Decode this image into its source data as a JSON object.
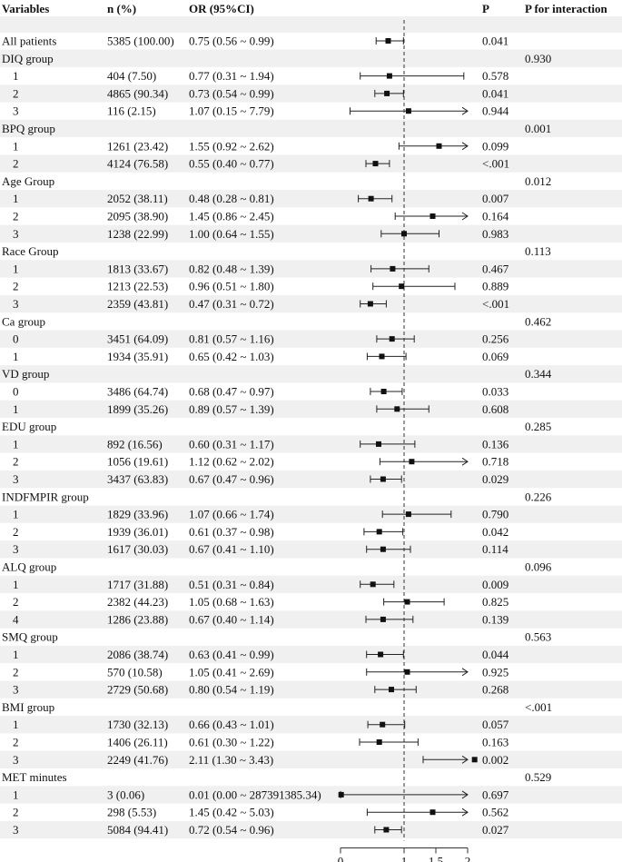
{
  "chart_data": {
    "type": "forest",
    "headers": {
      "variables": "Variables",
      "n": "n (%)",
      "or": "OR (95%CI)",
      "p": "P",
      "p_interaction": "P for interaction"
    },
    "x_axis": {
      "ticks": [
        0,
        1,
        1.5,
        2
      ],
      "tick_labels": [
        "0",
        "1",
        "1.5",
        "2"
      ],
      "range": [
        0,
        2
      ],
      "reference_line": 1
    },
    "rows": [
      {
        "label": "All patients",
        "n": "5385 (100.00)",
        "or_text": "0.75 (0.56 ~ 0.99)",
        "or": 0.75,
        "lo": 0.56,
        "hi": 0.99,
        "p": "0.041",
        "pint": ""
      },
      {
        "label": "DIQ group",
        "header": true,
        "pint": "0.930"
      },
      {
        "label": "1",
        "n": "404 (7.50)",
        "or_text": "0.77 (0.31 ~ 1.94)",
        "or": 0.77,
        "lo": 0.31,
        "hi": 1.94,
        "p": "0.578",
        "pint": ""
      },
      {
        "label": "2",
        "n": "4865 (90.34)",
        "or_text": "0.73 (0.54 ~ 0.99)",
        "or": 0.73,
        "lo": 0.54,
        "hi": 0.99,
        "p": "0.041",
        "pint": ""
      },
      {
        "label": "3",
        "n": "116 (2.15)",
        "or_text": "1.07 (0.15 ~ 7.79)",
        "or": 1.07,
        "lo": 0.15,
        "hi": 7.79,
        "p": "0.944",
        "pint": ""
      },
      {
        "label": "BPQ group",
        "header": true,
        "pint": "0.001"
      },
      {
        "label": "1",
        "n": "1261 (23.42)",
        "or_text": "1.55 (0.92 ~ 2.62)",
        "or": 1.55,
        "lo": 0.92,
        "hi": 2.62,
        "p": "0.099",
        "pint": ""
      },
      {
        "label": "2",
        "n": "4124 (76.58)",
        "or_text": "0.55 (0.40 ~ 0.77)",
        "or": 0.55,
        "lo": 0.4,
        "hi": 0.77,
        "p": "<.001",
        "pint": ""
      },
      {
        "label": "Age Group",
        "header": true,
        "pint": "0.012"
      },
      {
        "label": "1",
        "n": "2052 (38.11)",
        "or_text": "0.48 (0.28 ~ 0.81)",
        "or": 0.48,
        "lo": 0.28,
        "hi": 0.81,
        "p": "0.007",
        "pint": ""
      },
      {
        "label": "2",
        "n": "2095 (38.90)",
        "or_text": "1.45 (0.86 ~ 2.45)",
        "or": 1.45,
        "lo": 0.86,
        "hi": 2.45,
        "p": "0.164",
        "pint": ""
      },
      {
        "label": "3",
        "n": "1238 (22.99)",
        "or_text": "1.00 (0.64 ~ 1.55)",
        "or": 1.0,
        "lo": 0.64,
        "hi": 1.55,
        "p": "0.983",
        "pint": ""
      },
      {
        "label": "Race Group",
        "header": true,
        "pint": "0.113"
      },
      {
        "label": "1",
        "n": "1813 (33.67)",
        "or_text": "0.82 (0.48 ~ 1.39)",
        "or": 0.82,
        "lo": 0.48,
        "hi": 1.39,
        "p": "0.467",
        "pint": ""
      },
      {
        "label": "2",
        "n": "1213 (22.53)",
        "or_text": "0.96 (0.51 ~ 1.80)",
        "or": 0.96,
        "lo": 0.51,
        "hi": 1.8,
        "p": "0.889",
        "pint": ""
      },
      {
        "label": "3",
        "n": "2359 (43.81)",
        "or_text": "0.47 (0.31 ~ 0.72)",
        "or": 0.47,
        "lo": 0.31,
        "hi": 0.72,
        "p": "<.001",
        "pint": ""
      },
      {
        "label": "Ca group",
        "header": true,
        "pint": "0.462"
      },
      {
        "label": "0",
        "n": "3451 (64.09)",
        "or_text": "0.81 (0.57 ~ 1.16)",
        "or": 0.81,
        "lo": 0.57,
        "hi": 1.16,
        "p": "0.256",
        "pint": ""
      },
      {
        "label": "1",
        "n": "1934 (35.91)",
        "or_text": "0.65 (0.42 ~ 1.03)",
        "or": 0.65,
        "lo": 0.42,
        "hi": 1.03,
        "p": "0.069",
        "pint": ""
      },
      {
        "label": "VD group",
        "header": true,
        "pint": "0.344"
      },
      {
        "label": "0",
        "n": "3486 (64.74)",
        "or_text": "0.68 (0.47 ~ 0.97)",
        "or": 0.68,
        "lo": 0.47,
        "hi": 0.97,
        "p": "0.033",
        "pint": ""
      },
      {
        "label": "1",
        "n": "1899 (35.26)",
        "or_text": "0.89 (0.57 ~ 1.39)",
        "or": 0.89,
        "lo": 0.57,
        "hi": 1.39,
        "p": "0.608",
        "pint": ""
      },
      {
        "label": "EDU group",
        "header": true,
        "pint": "0.285"
      },
      {
        "label": "1",
        "n": "892 (16.56)",
        "or_text": "0.60 (0.31 ~ 1.17)",
        "or": 0.6,
        "lo": 0.31,
        "hi": 1.17,
        "p": "0.136",
        "pint": ""
      },
      {
        "label": "2",
        "n": "1056 (19.61)",
        "or_text": "1.12 (0.62 ~ 2.02)",
        "or": 1.12,
        "lo": 0.62,
        "hi": 2.02,
        "p": "0.718",
        "pint": ""
      },
      {
        "label": "3",
        "n": "3437 (63.83)",
        "or_text": "0.67 (0.47 ~ 0.96)",
        "or": 0.67,
        "lo": 0.47,
        "hi": 0.96,
        "p": "0.029",
        "pint": ""
      },
      {
        "label": "INDFMPIR group",
        "header": true,
        "pint": "0.226"
      },
      {
        "label": "1",
        "n": "1829 (33.96)",
        "or_text": "1.07 (0.66 ~ 1.74)",
        "or": 1.07,
        "lo": 0.66,
        "hi": 1.74,
        "p": "0.790",
        "pint": ""
      },
      {
        "label": "2",
        "n": "1939 (36.01)",
        "or_text": "0.61 (0.37 ~ 0.98)",
        "or": 0.61,
        "lo": 0.37,
        "hi": 0.98,
        "p": "0.042",
        "pint": ""
      },
      {
        "label": "3",
        "n": "1617 (30.03)",
        "or_text": "0.67 (0.41 ~ 1.10)",
        "or": 0.67,
        "lo": 0.41,
        "hi": 1.1,
        "p": "0.114",
        "pint": ""
      },
      {
        "label": "ALQ group",
        "header": true,
        "pint": "0.096"
      },
      {
        "label": "1",
        "n": "1717 (31.88)",
        "or_text": "0.51 (0.31 ~ 0.84)",
        "or": 0.51,
        "lo": 0.31,
        "hi": 0.84,
        "p": "0.009",
        "pint": ""
      },
      {
        "label": "2",
        "n": "2382 (44.23)",
        "or_text": "1.05 (0.68 ~ 1.63)",
        "or": 1.05,
        "lo": 0.68,
        "hi": 1.63,
        "p": "0.825",
        "pint": ""
      },
      {
        "label": "4",
        "n": "1286 (23.88)",
        "or_text": "0.67 (0.40 ~ 1.14)",
        "or": 0.67,
        "lo": 0.4,
        "hi": 1.14,
        "p": "0.139",
        "pint": ""
      },
      {
        "label": "SMQ group",
        "header": true,
        "pint": "0.563"
      },
      {
        "label": "1",
        "n": "2086 (38.74)",
        "or_text": "0.63 (0.41 ~ 0.99)",
        "or": 0.63,
        "lo": 0.41,
        "hi": 0.99,
        "p": "0.044",
        "pint": ""
      },
      {
        "label": "2",
        "n": "570 (10.58)",
        "or_text": "1.05 (0.41 ~ 2.69)",
        "or": 1.05,
        "lo": 0.41,
        "hi": 2.69,
        "p": "0.925",
        "pint": ""
      },
      {
        "label": "3",
        "n": "2729 (50.68)",
        "or_text": "0.80 (0.54 ~ 1.19)",
        "or": 0.8,
        "lo": 0.54,
        "hi": 1.19,
        "p": "0.268",
        "pint": ""
      },
      {
        "label": "BMI group",
        "header": true,
        "pint": "<.001"
      },
      {
        "label": "1",
        "n": "1730 (32.13)",
        "or_text": "0.66 (0.43 ~ 1.01)",
        "or": 0.66,
        "lo": 0.43,
        "hi": 1.01,
        "p": "0.057",
        "pint": ""
      },
      {
        "label": "2",
        "n": "1406 (26.11)",
        "or_text": "0.61 (0.30 ~ 1.22)",
        "or": 0.61,
        "lo": 0.3,
        "hi": 1.22,
        "p": "0.163",
        "pint": ""
      },
      {
        "label": "3",
        "n": "2249 (41.76)",
        "or_text": "2.11 (1.30 ~ 3.43)",
        "or": 2.11,
        "lo": 1.3,
        "hi": 3.43,
        "p": "0.002",
        "pint": ""
      },
      {
        "label": "MET minutes",
        "header": true,
        "pint": "0.529"
      },
      {
        "label": "1",
        "n": "3 (0.06)",
        "or_text": "0.01 (0.00 ~ 287391385.34)",
        "or": 0.01,
        "lo": 0.0,
        "hi": 287391385.34,
        "p": "0.697",
        "pint": ""
      },
      {
        "label": "2",
        "n": "298 (5.53)",
        "or_text": "1.45 (0.42 ~ 5.03)",
        "or": 1.45,
        "lo": 0.42,
        "hi": 5.03,
        "p": "0.562",
        "pint": ""
      },
      {
        "label": "3",
        "n": "5084 (94.41)",
        "or_text": "0.72 (0.54 ~ 0.96)",
        "or": 0.72,
        "lo": 0.54,
        "hi": 0.96,
        "p": "0.027",
        "pint": ""
      }
    ]
  }
}
